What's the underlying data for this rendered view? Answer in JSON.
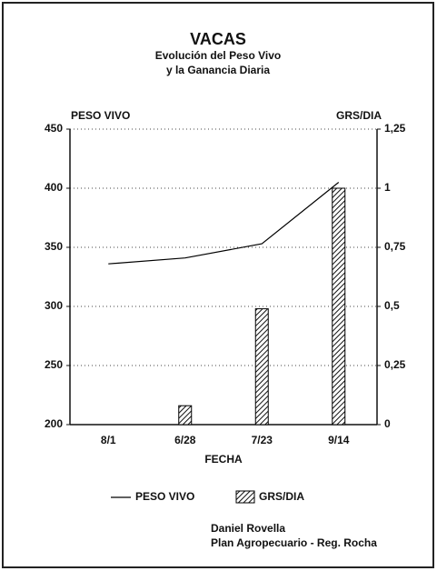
{
  "chart_data": {
    "type": "combo",
    "title": "VACAS",
    "subtitle": [
      "Evolución del Peso Vivo",
      "y la Ganancia Diaria"
    ],
    "y_label": "PESO VIVO",
    "y2_label": "GRS/DIA",
    "x_label": "FECHA",
    "categories": [
      "8/1",
      "6/28",
      "7/23",
      "9/14"
    ],
    "series": [
      {
        "name": "PESO VIVO",
        "type": "line",
        "color": "#000000",
        "values": [
          336,
          341,
          353,
          405
        ]
      },
      {
        "name": "GRS/DIA",
        "type": "bar",
        "axis": "y2",
        "color": "#000000",
        "values": [
          0,
          0.08,
          0.49,
          1.0
        ]
      }
    ],
    "ylim": [
      200,
      450
    ],
    "yticks": [
      200,
      250,
      300,
      350,
      400,
      450
    ],
    "y2lim": [
      0,
      1.25
    ],
    "y2ticks": [
      0,
      {
        "value": 0.25,
        "label": "0,25"
      },
      {
        "value": 0.5,
        "label": "0,5"
      },
      {
        "value": 0.75,
        "label": "0,75"
      },
      1,
      {
        "value": 1.25,
        "label": "1,25"
      }
    ],
    "grid": true,
    "legend": "bottom",
    "footer": [
      "Daniel Rovella",
      "Plan Agropecuario - Reg. Rocha"
    ]
  }
}
